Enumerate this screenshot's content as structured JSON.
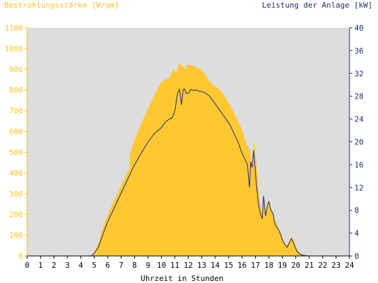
{
  "chart_data": {
    "type": "area",
    "title_left": "Bestrahlungsstärke [W/qm]",
    "title_right": "Leistung der Anlage [kW]",
    "xlabel": "Uhrzeit in Stunden",
    "xlim": [
      0,
      24
    ],
    "ylim_left": [
      0,
      1100
    ],
    "ylim_right": [
      0,
      40
    ],
    "x_ticks": [
      "0",
      "1",
      "2",
      "3",
      "4",
      "5",
      "6",
      "7",
      "8",
      "9",
      "10",
      "11",
      "12",
      "13",
      "14",
      "15",
      "16",
      "17",
      "18",
      "19",
      "20",
      "21",
      "22",
      "23",
      "24"
    ],
    "y_ticks_left": [
      "0",
      "100",
      "200",
      "300",
      "400",
      "500",
      "600",
      "700",
      "800",
      "900",
      "1000",
      "1100"
    ],
    "y_ticks_right": [
      "0",
      "4",
      "8",
      "12",
      "16",
      "20",
      "24",
      "28",
      "32",
      "36",
      "40"
    ],
    "grid": false,
    "colors": {
      "irradiance": "#ffc832",
      "power": "#1a2e6e",
      "plot_bg": "#dddddd"
    },
    "series": [
      {
        "name": "Bestrahlungsstärke [W/qm]",
        "axis": "left",
        "x": [
          0,
          4.8,
          5.0,
          5.3,
          5.6,
          6.0,
          6.5,
          7.0,
          7.6,
          7.65,
          8.0,
          8.5,
          9.0,
          9.5,
          10.0,
          10.3,
          10.6,
          10.9,
          11.1,
          11.3,
          11.5,
          11.7,
          11.9,
          12.1,
          12.4,
          12.7,
          13.0,
          13.3,
          13.6,
          13.9,
          14.2,
          14.5,
          14.8,
          15.1,
          15.4,
          15.7,
          16.0,
          16.2,
          16.4,
          16.6,
          16.75,
          16.9,
          17.0,
          17.1,
          17.2,
          17.35,
          17.5,
          17.6,
          17.75,
          17.9,
          18.0,
          18.15,
          18.3,
          18.45,
          18.6,
          18.75,
          18.9,
          19.05,
          19.2,
          19.35,
          19.5,
          19.65,
          19.8,
          19.95,
          20.1,
          20.3,
          20.5,
          20.8,
          21.0,
          24
        ],
        "values": [
          0,
          0,
          20,
          60,
          130,
          200,
          270,
          340,
          420,
          490,
          560,
          640,
          710,
          780,
          840,
          850,
          860,
          900,
          880,
          930,
          920,
          900,
          920,
          920,
          915,
          905,
          895,
          870,
          840,
          820,
          810,
          790,
          760,
          730,
          690,
          650,
          610,
          560,
          530,
          510,
          420,
          560,
          500,
          430,
          340,
          250,
          200,
          290,
          200,
          260,
          270,
          230,
          210,
          170,
          160,
          120,
          110,
          80,
          60,
          50,
          70,
          90,
          85,
          60,
          30,
          15,
          5,
          0,
          0,
          0
        ]
      },
      {
        "name": "Leistung der Anlage [kW]",
        "axis": "right",
        "x": [
          0,
          4.8,
          5.0,
          5.3,
          5.6,
          6.0,
          6.5,
          7.0,
          7.5,
          8.0,
          8.5,
          9.0,
          9.5,
          10.0,
          10.3,
          10.6,
          10.8,
          11.0,
          11.2,
          11.35,
          11.5,
          11.6,
          11.7,
          11.85,
          12.0,
          12.2,
          12.4,
          12.6,
          12.8,
          13.0,
          13.3,
          13.6,
          13.9,
          14.2,
          14.5,
          14.8,
          15.1,
          15.4,
          15.7,
          16.0,
          16.2,
          16.4,
          16.55,
          16.65,
          16.75,
          16.85,
          16.95,
          17.05,
          17.2,
          17.35,
          17.5,
          17.6,
          17.75,
          17.9,
          18.0,
          18.15,
          18.3,
          18.45,
          18.6,
          18.75,
          18.9,
          19.05,
          19.2,
          19.35,
          19.5,
          19.65,
          19.8,
          19.95,
          20.1,
          20.3,
          20.6,
          21.0,
          24
        ],
        "values": [
          0,
          0,
          0.5,
          1.5,
          3.5,
          6,
          8.5,
          11,
          13.5,
          16,
          18,
          20,
          21.5,
          22.5,
          23.5,
          24,
          24.2,
          25.5,
          28.5,
          29.2,
          26.5,
          29.0,
          29.3,
          28.5,
          28.5,
          29.2,
          29.0,
          29.1,
          28.9,
          28.8,
          28.5,
          28.0,
          27.0,
          26.0,
          25.0,
          24.0,
          23.0,
          21.5,
          20.0,
          18.0,
          17.0,
          16.0,
          12.0,
          16.5,
          15.5,
          18.5,
          16.0,
          13.0,
          9.5,
          7.5,
          6.5,
          10.5,
          7.0,
          9.0,
          9.5,
          8.0,
          7.5,
          5.5,
          5.0,
          4.5,
          3.5,
          2.5,
          2.0,
          1.5,
          2.2,
          3.0,
          2.5,
          1.5,
          0.8,
          0.3,
          0.1,
          0,
          0
        ]
      }
    ]
  }
}
